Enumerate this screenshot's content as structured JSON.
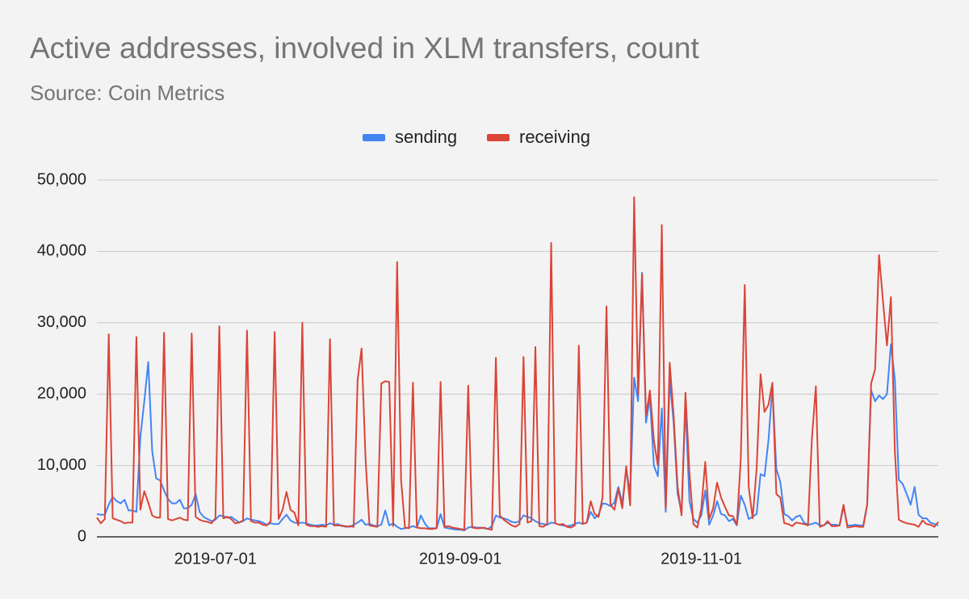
{
  "chart_data": {
    "type": "line",
    "title": "Active addresses, involved in XLM transfers, count",
    "subtitle": "Source: Coin Metrics",
    "x": [
      "2019-06-01",
      "2019-06-02",
      "2019-06-03",
      "2019-06-04",
      "2019-06-05",
      "2019-06-06",
      "2019-06-07",
      "2019-06-08",
      "2019-06-09",
      "2019-06-10",
      "2019-06-11",
      "2019-06-12",
      "2019-06-13",
      "2019-06-14",
      "2019-06-15",
      "2019-06-16",
      "2019-06-17",
      "2019-06-18",
      "2019-06-19",
      "2019-06-20",
      "2019-06-21",
      "2019-06-22",
      "2019-06-23",
      "2019-06-24",
      "2019-06-25",
      "2019-06-26",
      "2019-06-27",
      "2019-06-28",
      "2019-06-29",
      "2019-06-30",
      "2019-07-01",
      "2019-07-02",
      "2019-07-03",
      "2019-07-04",
      "2019-07-05",
      "2019-07-06",
      "2019-07-07",
      "2019-07-08",
      "2019-07-09",
      "2019-07-10",
      "2019-07-11",
      "2019-07-12",
      "2019-07-13",
      "2019-07-14",
      "2019-07-15",
      "2019-07-16",
      "2019-07-17",
      "2019-07-18",
      "2019-07-19",
      "2019-07-20",
      "2019-07-21",
      "2019-07-22",
      "2019-07-23",
      "2019-07-24",
      "2019-07-25",
      "2019-07-26",
      "2019-07-27",
      "2019-07-28",
      "2019-07-29",
      "2019-07-30",
      "2019-07-31",
      "2019-08-01",
      "2019-08-02",
      "2019-08-03",
      "2019-08-04",
      "2019-08-05",
      "2019-08-06",
      "2019-08-07",
      "2019-08-08",
      "2019-08-09",
      "2019-08-10",
      "2019-08-11",
      "2019-08-12",
      "2019-08-13",
      "2019-08-14",
      "2019-08-15",
      "2019-08-16",
      "2019-08-17",
      "2019-08-18",
      "2019-08-19",
      "2019-08-20",
      "2019-08-21",
      "2019-08-22",
      "2019-08-23",
      "2019-08-24",
      "2019-08-25",
      "2019-08-26",
      "2019-08-27",
      "2019-08-28",
      "2019-08-29",
      "2019-08-30",
      "2019-08-31",
      "2019-09-01",
      "2019-09-02",
      "2019-09-03",
      "2019-09-04",
      "2019-09-05",
      "2019-09-06",
      "2019-09-07",
      "2019-09-08",
      "2019-09-09",
      "2019-09-10",
      "2019-09-11",
      "2019-09-12",
      "2019-09-13",
      "2019-09-14",
      "2019-09-15",
      "2019-09-16",
      "2019-09-17",
      "2019-09-18",
      "2019-09-19",
      "2019-09-20",
      "2019-09-21",
      "2019-09-22",
      "2019-09-23",
      "2019-09-24",
      "2019-09-25",
      "2019-09-26",
      "2019-09-27",
      "2019-09-28",
      "2019-09-29",
      "2019-09-30",
      "2019-10-01",
      "2019-10-02",
      "2019-10-03",
      "2019-10-04",
      "2019-10-05",
      "2019-10-06",
      "2019-10-07",
      "2019-10-08",
      "2019-10-09",
      "2019-10-10",
      "2019-10-11",
      "2019-10-12",
      "2019-10-13",
      "2019-10-14",
      "2019-10-15",
      "2019-10-16",
      "2019-10-17",
      "2019-10-18",
      "2019-10-19",
      "2019-10-20",
      "2019-10-21",
      "2019-10-22",
      "2019-10-23",
      "2019-10-24",
      "2019-10-25",
      "2019-10-26",
      "2019-10-27",
      "2019-10-28",
      "2019-10-29",
      "2019-10-30",
      "2019-10-31",
      "2019-11-01",
      "2019-11-02",
      "2019-11-03",
      "2019-11-04",
      "2019-11-05",
      "2019-11-06",
      "2019-11-07",
      "2019-11-08",
      "2019-11-09",
      "2019-11-10",
      "2019-11-11",
      "2019-11-12",
      "2019-11-13",
      "2019-11-14",
      "2019-11-15",
      "2019-11-16",
      "2019-11-17",
      "2019-11-18",
      "2019-11-19",
      "2019-11-20",
      "2019-11-21",
      "2019-11-22",
      "2019-11-23",
      "2019-11-24",
      "2019-11-25",
      "2019-11-26",
      "2019-11-27",
      "2019-11-28",
      "2019-11-29",
      "2019-11-30",
      "2019-12-01",
      "2019-12-02",
      "2019-12-03",
      "2019-12-04",
      "2019-12-05",
      "2019-12-06",
      "2019-12-07",
      "2019-12-08",
      "2019-12-09",
      "2019-12-10",
      "2019-12-11",
      "2019-12-12",
      "2019-12-13",
      "2019-12-14",
      "2019-12-15",
      "2019-12-16",
      "2019-12-17",
      "2019-12-18",
      "2019-12-19",
      "2019-12-20",
      "2019-12-21",
      "2019-12-22",
      "2019-12-23",
      "2019-12-24",
      "2019-12-25",
      "2019-12-26",
      "2019-12-27",
      "2019-12-28",
      "2019-12-29",
      "2019-12-30",
      "2019-12-31"
    ],
    "series": [
      {
        "name": "sending",
        "color": "#4285f4",
        "values": [
          3200,
          3100,
          3100,
          4500,
          5600,
          5000,
          4700,
          5200,
          3700,
          3700,
          3500,
          14000,
          19000,
          24500,
          12000,
          8200,
          7900,
          6500,
          5300,
          4700,
          4700,
          5200,
          4000,
          4000,
          4500,
          6000,
          3500,
          2800,
          2500,
          2200,
          2400,
          3000,
          2900,
          2700,
          2800,
          2400,
          2000,
          2200,
          2600,
          2400,
          2300,
          2200,
          2000,
          1700,
          1900,
          1800,
          1800,
          2500,
          3100,
          2300,
          2000,
          1900,
          2000,
          1900,
          1700,
          1600,
          1600,
          1700,
          1600,
          1900,
          1700,
          1800,
          1500,
          1500,
          1400,
          1700,
          2000,
          2400,
          1700,
          1800,
          1600,
          1500,
          1700,
          3700,
          1600,
          1900,
          1400,
          1100,
          1200,
          1300,
          1500,
          1300,
          3000,
          1900,
          1200,
          1200,
          1200,
          3200,
          1300,
          1200,
          1100,
          1000,
          1000,
          900,
          1300,
          1400,
          1300,
          1300,
          1200,
          1100,
          1500,
          3000,
          2700,
          2600,
          2400,
          2100,
          2000,
          2200,
          3000,
          2800,
          2600,
          2200,
          1900,
          1800,
          1700,
          2000,
          1900,
          1700,
          1600,
          1500,
          1600,
          1800,
          2000,
          1800,
          2000,
          3500,
          2600,
          3100,
          4700,
          4600,
          4300,
          4800,
          7000,
          4700,
          9500,
          6000,
          22300,
          19000,
          37000,
          16000,
          19500,
          10000,
          8500,
          18000,
          3500,
          22000,
          16000,
          6000,
          3500,
          18500,
          5000,
          2500,
          2000,
          3000,
          6500,
          1700,
          3000,
          5000,
          3200,
          3000,
          2200,
          2500,
          1600,
          5800,
          4500,
          2500,
          2800,
          3200,
          8800,
          8500,
          13500,
          21000,
          9500,
          7700,
          3200,
          2900,
          2300,
          2800,
          3000,
          2000,
          1700,
          1800,
          2000,
          1600,
          1600,
          2000,
          1700,
          1700,
          1600,
          4200,
          1600,
          1600,
          1700,
          1600,
          1600,
          4600,
          20500,
          19000,
          19800,
          19300,
          20000,
          27000,
          22000,
          8000,
          7400,
          6000,
          4500,
          7000,
          3100,
          2600,
          2600,
          2000,
          1800,
          1600
        ]
      },
      {
        "name": "receiving",
        "color": "#db4437",
        "values": [
          2700,
          1900,
          2500,
          28400,
          2600,
          2400,
          2200,
          1900,
          2000,
          2000,
          28000,
          3800,
          6400,
          4800,
          3000,
          2700,
          2700,
          28600,
          2500,
          2300,
          2500,
          2700,
          2400,
          2300,
          28500,
          2800,
          2400,
          2200,
          2100,
          1900,
          2600,
          29500,
          2600,
          2800,
          2500,
          1900,
          2000,
          2300,
          28900,
          2200,
          2000,
          2000,
          1700,
          1600,
          2200,
          28700,
          2500,
          3800,
          6300,
          3800,
          3400,
          1600,
          30000,
          1700,
          1500,
          1500,
          1400,
          1500,
          1400,
          27700,
          1600,
          1600,
          1600,
          1400,
          1500,
          1400,
          22000,
          26400,
          11000,
          1600,
          1500,
          1400,
          21500,
          21800,
          21700,
          1500,
          38500,
          8000,
          1300,
          1200,
          21600,
          1300,
          1200,
          1200,
          1100,
          1100,
          1200,
          21700,
          1400,
          1500,
          1300,
          1200,
          1100,
          1000,
          21200,
          1300,
          1200,
          1200,
          1300,
          1100,
          1000,
          25100,
          3000,
          2400,
          2000,
          1600,
          1400,
          1800,
          25200,
          2000,
          2200,
          26600,
          1500,
          1400,
          1800,
          41200,
          1900,
          1700,
          1800,
          1400,
          1300,
          1600,
          26800,
          1800,
          2000,
          5000,
          3200,
          2800,
          5500,
          32300,
          4500,
          3800,
          6700,
          4000,
          9900,
          4400,
          47600,
          20000,
          36800,
          17000,
          20500,
          13500,
          10000,
          43700,
          4000,
          24400,
          17000,
          7000,
          3000,
          20200,
          9000,
          1800,
          1300,
          4000,
          10500,
          2500,
          4000,
          7600,
          5500,
          4200,
          3000,
          2900,
          1700,
          11000,
          35300,
          7000,
          2600,
          9500,
          22800,
          17500,
          18500,
          21600,
          6000,
          5500,
          1900,
          1800,
          1500,
          2000,
          1900,
          1800,
          1600,
          13800,
          21100,
          1400,
          1600,
          2200,
          1500,
          1500,
          1600,
          4500,
          1300,
          1400,
          1500,
          1400,
          1400,
          4500,
          21500,
          23500,
          39500,
          33000,
          26800,
          33600,
          12000,
          2400,
          2100,
          1900,
          1800,
          1700,
          1400,
          2300,
          1800,
          1700,
          1400,
          2100
        ]
      }
    ],
    "xlim": [
      "2019-06-01",
      "2019-12-31"
    ],
    "xticks": [
      "2019-07-01",
      "2019-09-01",
      "2019-11-01"
    ],
    "ylim": [
      0,
      50000
    ],
    "yticks": [
      0,
      {
        "value": 10000,
        "label": "10,000"
      },
      {
        "value": 20000,
        "label": "20,000"
      },
      {
        "value": 30000,
        "label": "30,000"
      },
      {
        "value": 40000,
        "label": "40,000"
      },
      {
        "value": 50000,
        "label": "50,000"
      }
    ],
    "grid": true,
    "legend": "top"
  }
}
